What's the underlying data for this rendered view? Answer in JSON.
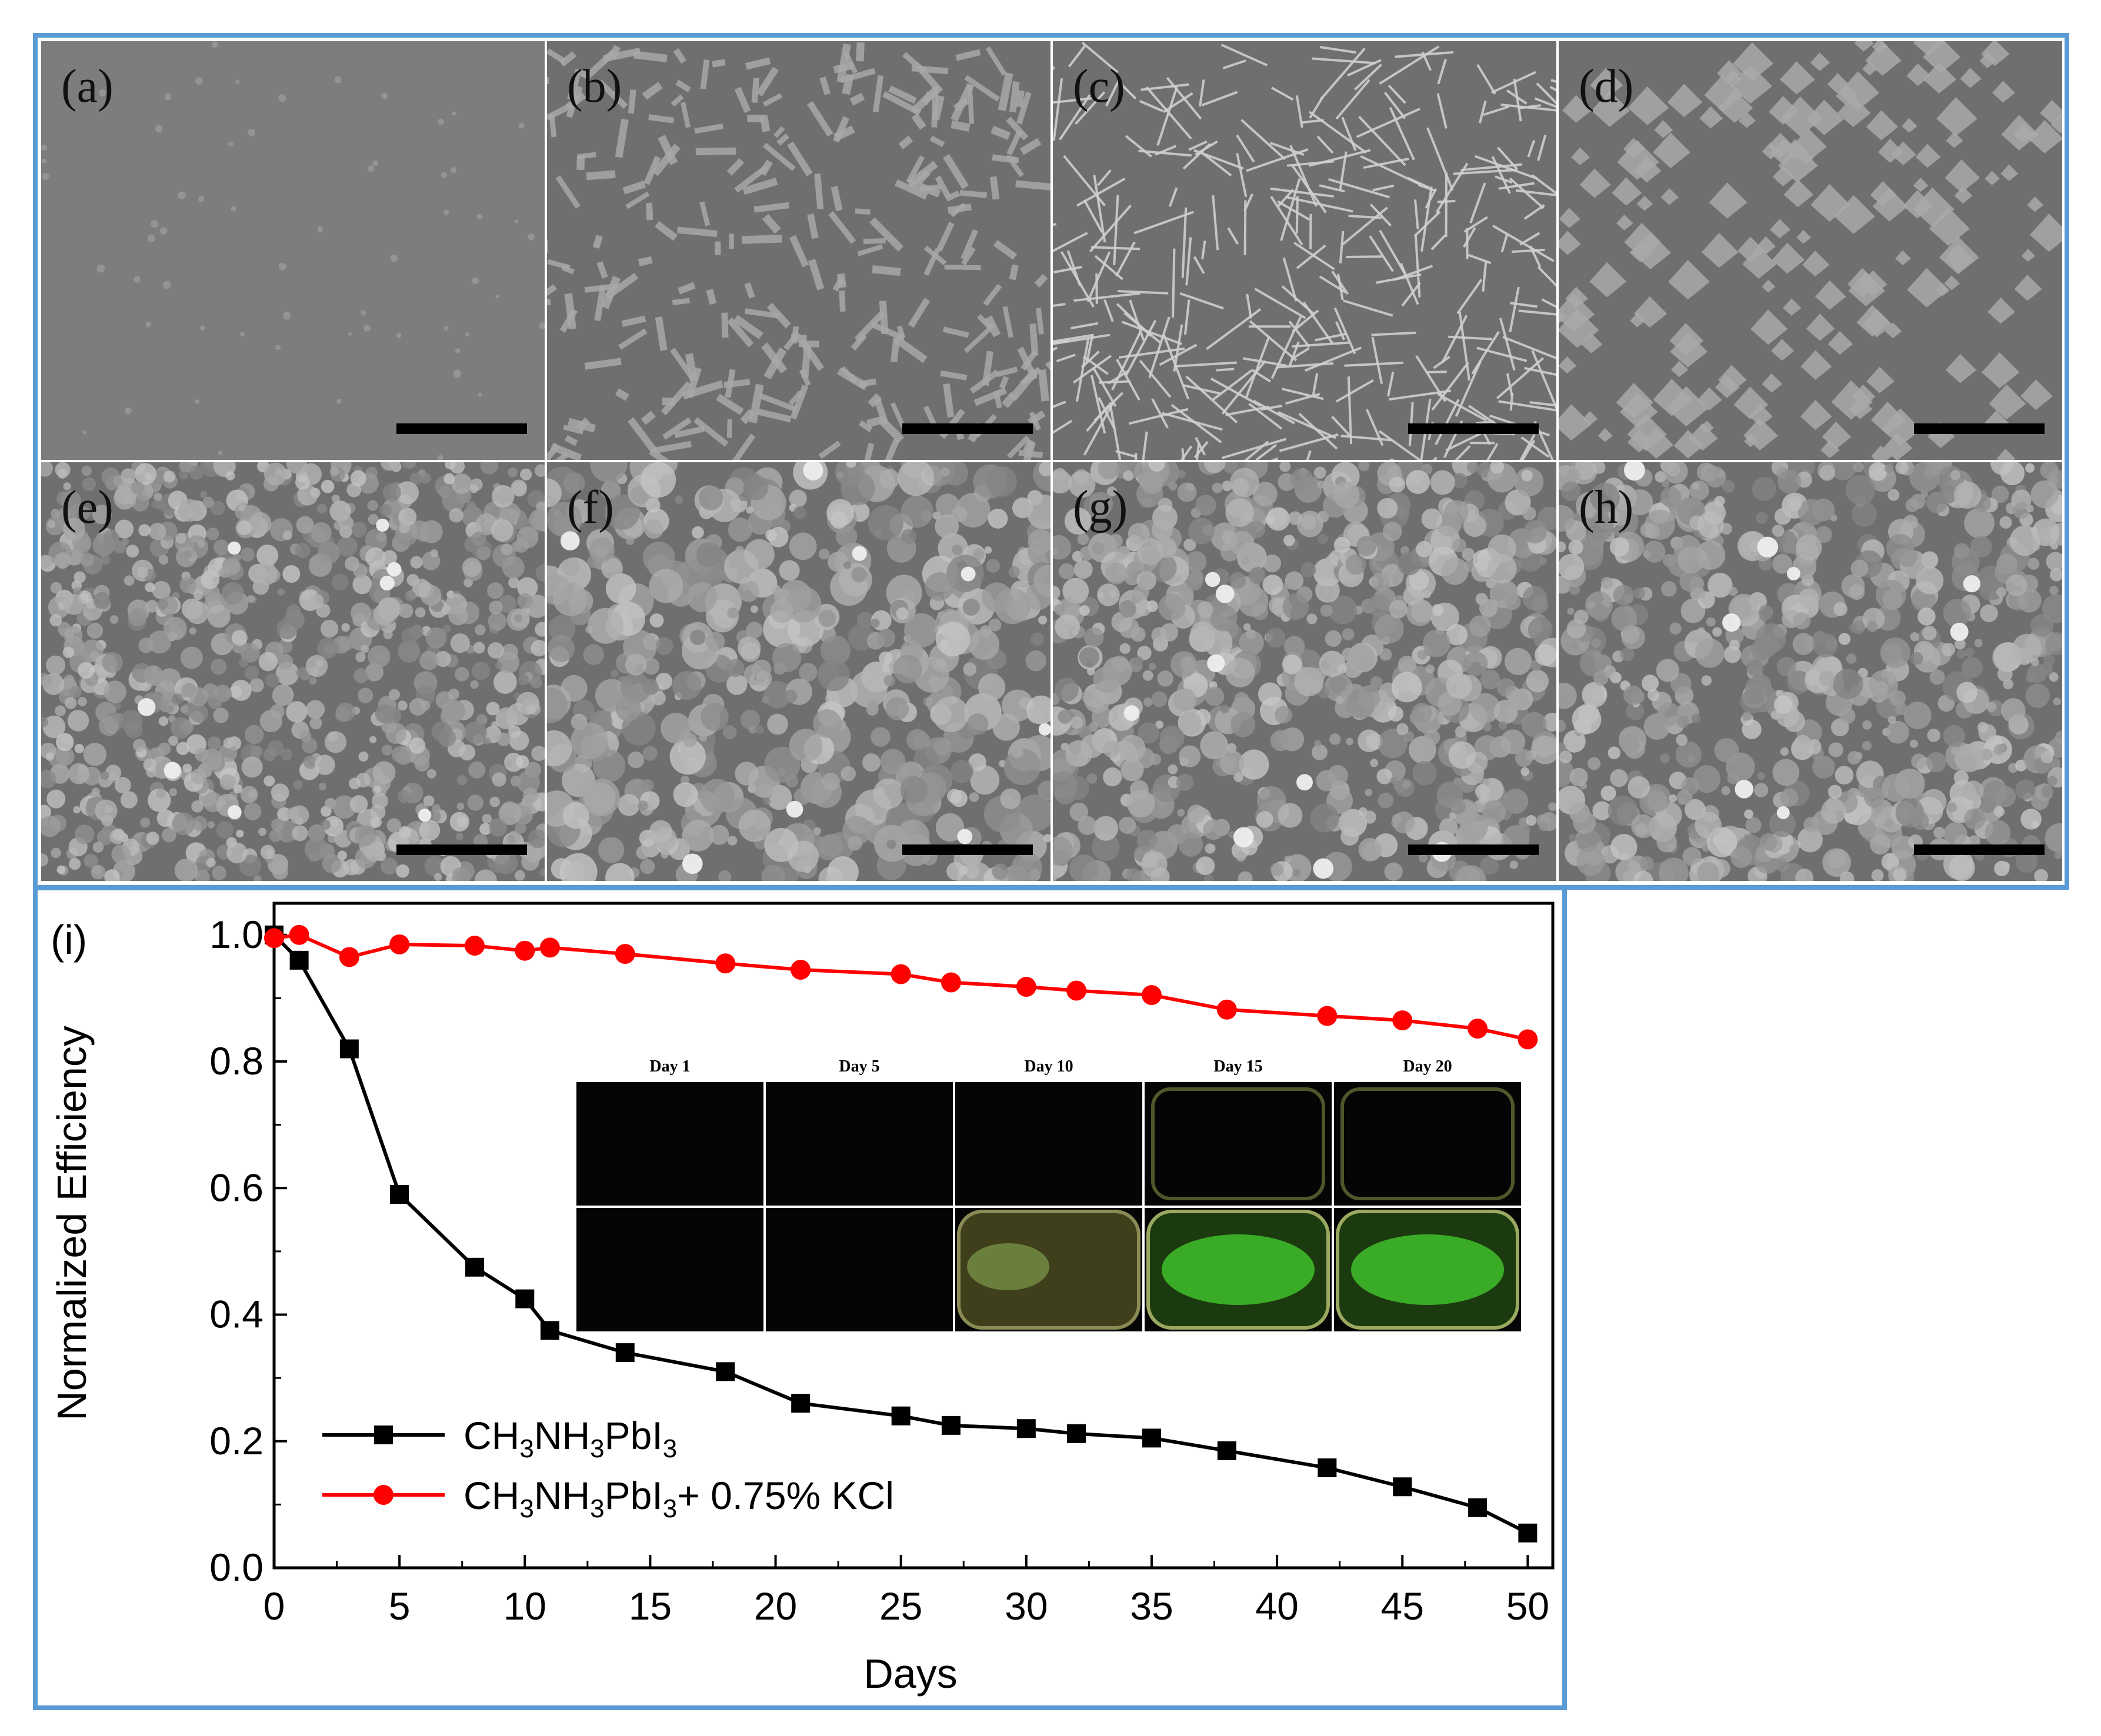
{
  "sem_panels": [
    {
      "label": "(a)",
      "style": "smooth"
    },
    {
      "label": "(b)",
      "style": "rods"
    },
    {
      "label": "(c)",
      "style": "needles"
    },
    {
      "label": "(d)",
      "style": "sparse-crystals"
    },
    {
      "label": "(e)",
      "style": "fine-grains"
    },
    {
      "label": "(f)",
      "style": "large-grains"
    },
    {
      "label": "(g)",
      "style": "medium-grains"
    },
    {
      "label": "(h)",
      "style": "medium-grains"
    }
  ],
  "colors": {
    "frame": "#5b9bd5",
    "series_black": "#000000",
    "series_red": "#ff0000",
    "sem_bg_a": "#7d7d7d",
    "sem_bg": "#6f6f6f"
  },
  "chart_data": {
    "type": "line",
    "panel_label": "(i)",
    "xlabel": "Days",
    "ylabel": "Normalized Efficiency",
    "xlim": [
      0,
      51
    ],
    "ylim": [
      0,
      1.05
    ],
    "xticks": [
      "0",
      "5",
      "10",
      "15",
      "20",
      "25",
      "30",
      "35",
      "40",
      "45",
      "50"
    ],
    "yticks": [
      "0.0",
      "0.2",
      "0.4",
      "0.6",
      "0.8",
      "1.0"
    ],
    "legend_position": "bottom-left",
    "series": [
      {
        "name": "CH3NH3PbI3",
        "name_parts": [
          [
            "CH",
            false
          ],
          [
            "3",
            true
          ],
          [
            "NH",
            false
          ],
          [
            "3",
            true
          ],
          [
            "PbI",
            false
          ],
          [
            "3",
            true
          ]
        ],
        "marker": "square",
        "color": "#000000",
        "x": [
          0,
          1,
          3,
          5,
          8,
          10,
          11,
          14,
          18,
          21,
          25,
          27,
          30,
          32,
          35,
          38,
          42,
          45,
          48,
          50
        ],
        "y": [
          1.0,
          0.96,
          0.82,
          0.59,
          0.475,
          0.425,
          0.375,
          0.34,
          0.31,
          0.26,
          0.24,
          0.225,
          0.22,
          0.212,
          0.205,
          0.185,
          0.158,
          0.128,
          0.095,
          0.055
        ]
      },
      {
        "name": "CH3NH3PbI3+ 0.75% KCl",
        "name_parts": [
          [
            "CH",
            false
          ],
          [
            "3",
            true
          ],
          [
            "NH",
            false
          ],
          [
            "3",
            true
          ],
          [
            "PbI",
            false
          ],
          [
            "3",
            true
          ],
          [
            "+ 0.75% KCl",
            false
          ]
        ],
        "marker": "circle",
        "color": "#ff0000",
        "x": [
          0,
          1,
          3,
          5,
          8,
          10,
          11,
          14,
          18,
          21,
          25,
          27,
          30,
          32,
          35,
          38,
          42,
          45,
          48,
          50
        ],
        "y": [
          0.995,
          1.0,
          0.965,
          0.985,
          0.983,
          0.975,
          0.98,
          0.97,
          0.955,
          0.945,
          0.938,
          0.925,
          0.918,
          0.912,
          0.905,
          0.882,
          0.872,
          0.865,
          0.852,
          0.835
        ]
      }
    ],
    "inset": {
      "days": [
        "Day 1",
        "Day 5",
        "Day 10",
        "Day 15",
        "Day 20"
      ],
      "rows": [
        [
          "dark",
          "dark",
          "dark",
          "dark-rim",
          "dark-rim"
        ],
        [
          "dark",
          "dark",
          "green-faint",
          "green-strong",
          "green-strong"
        ]
      ]
    }
  }
}
